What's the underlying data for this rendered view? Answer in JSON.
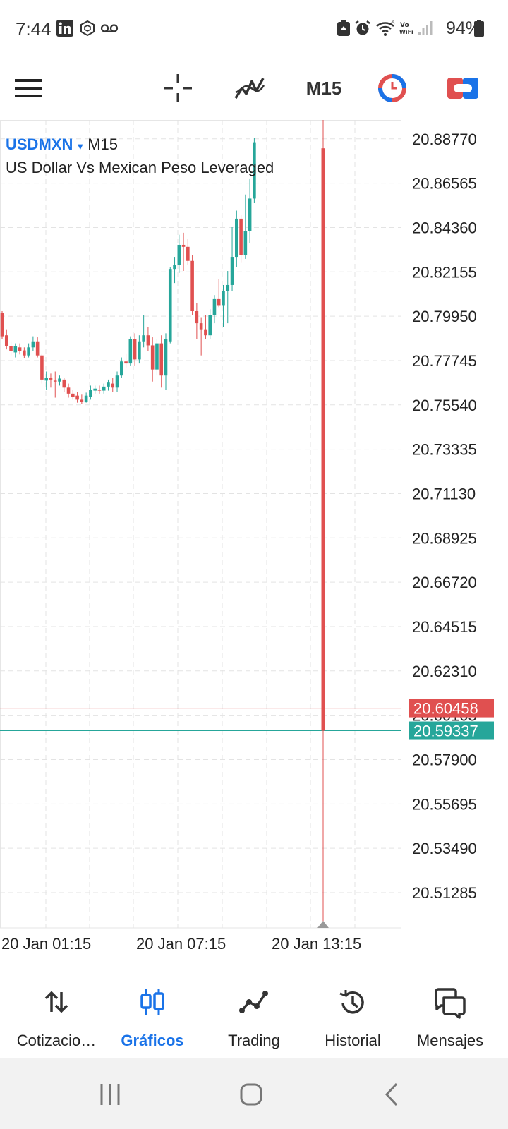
{
  "status_bar": {
    "time": "7:44",
    "battery_percent": "94%",
    "left_icons": [
      "linkedin-icon",
      "app-hexagon-icon",
      "voicemail-icon"
    ],
    "right_icons": [
      "recycle-icon",
      "alarm-icon",
      "wifi-call-icon",
      "vowifi-icon",
      "signal-icon",
      "battery-icon"
    ]
  },
  "toolbar": {
    "timeframe": "M15",
    "icons": [
      "menu-icon",
      "crosshair-icon",
      "indicators-icon",
      "timeframe",
      "chart-color-icon",
      "trade-toggle-icon"
    ]
  },
  "chart": {
    "symbol": "USDMXN",
    "timeframe": "M15",
    "description": "US Dollar Vs Mexican Peso Leveraged",
    "price_labels": [
      "20.88770",
      "20.86565",
      "20.84360",
      "20.82155",
      "20.79950",
      "20.77745",
      "20.75540",
      "20.73335",
      "20.71130",
      "20.68925",
      "20.66720",
      "20.64515",
      "20.62310",
      "20.60105",
      "20.57900",
      "20.55695",
      "20.53490",
      "20.51285"
    ],
    "time_labels": [
      "20 Jan 01:15",
      "20 Jan 07:15",
      "20 Jan 13:15"
    ],
    "bid_price": "20.59337",
    "ask_price": "20.60458",
    "bid_color": "#26a69a",
    "ask_color": "#e05050",
    "candle_up_color": "#26a69a",
    "candle_down_color": "#e05050"
  },
  "chart_data": {
    "type": "candlestick",
    "series": [
      {
        "o": 20.801,
        "h": 20.802,
        "l": 20.788,
        "c": 20.7895
      },
      {
        "o": 20.79,
        "h": 20.793,
        "l": 20.783,
        "c": 20.7845
      },
      {
        "o": 20.7845,
        "h": 20.787,
        "l": 20.78,
        "c": 20.782
      },
      {
        "o": 20.7815,
        "h": 20.786,
        "l": 20.779,
        "c": 20.7845
      },
      {
        "o": 20.784,
        "h": 20.786,
        "l": 20.7805,
        "c": 20.782
      },
      {
        "o": 20.7825,
        "h": 20.784,
        "l": 20.7785,
        "c": 20.78
      },
      {
        "o": 20.78,
        "h": 20.786,
        "l": 20.779,
        "c": 20.784
      },
      {
        "o": 20.784,
        "h": 20.7895,
        "l": 20.782,
        "c": 20.787
      },
      {
        "o": 20.787,
        "h": 20.789,
        "l": 20.779,
        "c": 20.78
      },
      {
        "o": 20.78,
        "h": 20.781,
        "l": 20.766,
        "c": 20.768
      },
      {
        "o": 20.7675,
        "h": 20.772,
        "l": 20.763,
        "c": 20.769
      },
      {
        "o": 20.769,
        "h": 20.771,
        "l": 20.764,
        "c": 20.768
      },
      {
        "o": 20.7675,
        "h": 20.772,
        "l": 20.759,
        "c": 20.767
      },
      {
        "o": 20.767,
        "h": 20.77,
        "l": 20.765,
        "c": 20.7685
      },
      {
        "o": 20.768,
        "h": 20.769,
        "l": 20.762,
        "c": 20.764
      },
      {
        "o": 20.764,
        "h": 20.766,
        "l": 20.759,
        "c": 20.761
      },
      {
        "o": 20.761,
        "h": 20.763,
        "l": 20.758,
        "c": 20.7595
      },
      {
        "o": 20.76,
        "h": 20.762,
        "l": 20.7565,
        "c": 20.758
      },
      {
        "o": 20.758,
        "h": 20.7605,
        "l": 20.756,
        "c": 20.757
      },
      {
        "o": 20.757,
        "h": 20.7615,
        "l": 20.7565,
        "c": 20.76
      },
      {
        "o": 20.7595,
        "h": 20.765,
        "l": 20.758,
        "c": 20.763
      },
      {
        "o": 20.7625,
        "h": 20.765,
        "l": 20.761,
        "c": 20.7635
      },
      {
        "o": 20.763,
        "h": 20.765,
        "l": 20.761,
        "c": 20.7625
      },
      {
        "o": 20.7625,
        "h": 20.766,
        "l": 20.761,
        "c": 20.7645
      },
      {
        "o": 20.7645,
        "h": 20.768,
        "l": 20.7625,
        "c": 20.7665
      },
      {
        "o": 20.766,
        "h": 20.769,
        "l": 20.762,
        "c": 20.764
      },
      {
        "o": 20.764,
        "h": 20.772,
        "l": 20.762,
        "c": 20.77
      },
      {
        "o": 20.77,
        "h": 20.779,
        "l": 20.769,
        "c": 20.777
      },
      {
        "o": 20.777,
        "h": 20.781,
        "l": 20.774,
        "c": 20.776
      },
      {
        "o": 20.776,
        "h": 20.7895,
        "l": 20.775,
        "c": 20.788
      },
      {
        "o": 20.788,
        "h": 20.791,
        "l": 20.775,
        "c": 20.778
      },
      {
        "o": 20.778,
        "h": 20.79,
        "l": 20.776,
        "c": 20.787
      },
      {
        "o": 20.787,
        "h": 20.8,
        "l": 20.784,
        "c": 20.79
      },
      {
        "o": 20.79,
        "h": 20.794,
        "l": 20.782,
        "c": 20.785
      },
      {
        "o": 20.785,
        "h": 20.789,
        "l": 20.767,
        "c": 20.773
      },
      {
        "o": 20.773,
        "h": 20.788,
        "l": 20.77,
        "c": 20.786
      },
      {
        "o": 20.786,
        "h": 20.79,
        "l": 20.764,
        "c": 20.77
      },
      {
        "o": 20.77,
        "h": 20.791,
        "l": 20.763,
        "c": 20.788
      },
      {
        "o": 20.787,
        "h": 20.824,
        "l": 20.786,
        "c": 20.823
      },
      {
        "o": 20.823,
        "h": 20.829,
        "l": 20.816,
        "c": 20.825
      },
      {
        "o": 20.825,
        "h": 20.84,
        "l": 20.821,
        "c": 20.835
      },
      {
        "o": 20.835,
        "h": 20.841,
        "l": 20.822,
        "c": 20.834
      },
      {
        "o": 20.834,
        "h": 20.838,
        "l": 20.825,
        "c": 20.827
      },
      {
        "o": 20.827,
        "h": 20.83,
        "l": 20.8,
        "c": 20.802
      },
      {
        "o": 20.802,
        "h": 20.806,
        "l": 20.788,
        "c": 20.796
      },
      {
        "o": 20.796,
        "h": 20.799,
        "l": 20.78,
        "c": 20.793
      },
      {
        "o": 20.793,
        "h": 20.8,
        "l": 20.788,
        "c": 20.79
      },
      {
        "o": 20.79,
        "h": 20.803,
        "l": 20.788,
        "c": 20.8
      },
      {
        "o": 20.8,
        "h": 20.81,
        "l": 20.796,
        "c": 20.808
      },
      {
        "o": 20.808,
        "h": 20.818,
        "l": 20.804,
        "c": 20.805
      },
      {
        "o": 20.805,
        "h": 20.815,
        "l": 20.794,
        "c": 20.812
      },
      {
        "o": 20.812,
        "h": 20.822,
        "l": 20.796,
        "c": 20.815
      },
      {
        "o": 20.815,
        "h": 20.844,
        "l": 20.812,
        "c": 20.829
      },
      {
        "o": 20.829,
        "h": 20.852,
        "l": 20.824,
        "c": 20.848
      },
      {
        "o": 20.848,
        "h": 20.85,
        "l": 20.826,
        "c": 20.83
      },
      {
        "o": 20.83,
        "h": 20.86,
        "l": 20.828,
        "c": 20.842
      },
      {
        "o": 20.842,
        "h": 20.868,
        "l": 20.836,
        "c": 20.858
      },
      {
        "o": 20.858,
        "h": 20.888,
        "l": 20.856,
        "c": 20.886
      },
      {
        "o": 20.883,
        "h": 20.891,
        "l": 20.5934,
        "c": 20.5934
      }
    ],
    "ylim": [
      20.4953,
      20.8971
    ],
    "bid": 20.59337,
    "ask": 20.60458,
    "grid": true,
    "price_axis": "right"
  },
  "bottom_nav": [
    {
      "label": "Cotizacio…",
      "icon": "quotes-arrows-icon",
      "active": false
    },
    {
      "label": "Gráficos",
      "icon": "charts-icon",
      "active": true
    },
    {
      "label": "Trading",
      "icon": "trading-icon",
      "active": false
    },
    {
      "label": "Historial",
      "icon": "history-icon",
      "active": false
    },
    {
      "label": "Mensajes",
      "icon": "messages-icon",
      "active": false
    }
  ],
  "system_nav": [
    "recents-icon",
    "home-icon",
    "back-icon"
  ]
}
